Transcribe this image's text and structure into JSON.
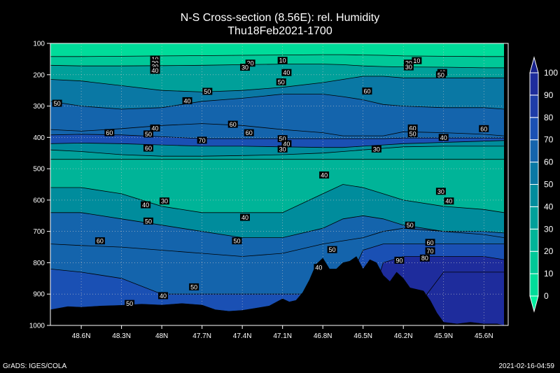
{
  "title_line1": "N-S Cross-section (8.56E): rel. Humidity",
  "title_line2": "Thu18Feb2021-1700",
  "footer_left": "GrADS: IGES/COLA",
  "footer_right": "2021-02-16-04:59",
  "chart_data": {
    "type": "heatmap",
    "title": "N-S Cross-section (8.56E): rel. Humidity",
    "subtitle": "Thu18Feb2021-1700",
    "x_ticks": [
      "48.6N",
      "48.3N",
      "48N",
      "47.7N",
      "47.4N",
      "47.1N",
      "46.8N",
      "46.5N",
      "46.2N",
      "45.9N",
      "45.6N"
    ],
    "x_tick_values": [
      48.6,
      48.3,
      48.0,
      47.7,
      47.4,
      47.1,
      46.8,
      46.5,
      46.2,
      45.9,
      45.6
    ],
    "xlim": [
      48.83,
      45.45
    ],
    "y_ticks": [
      "100",
      "200",
      "300",
      "400",
      "500",
      "600",
      "700",
      "800",
      "900",
      "1000"
    ],
    "ylim": [
      100,
      1000
    ],
    "y_reversed": true,
    "grid": true,
    "colorbar": {
      "levels": [
        0,
        10,
        20,
        30,
        40,
        50,
        60,
        70,
        80,
        90,
        100
      ],
      "colors": [
        "#00f0a0",
        "#00dc9a",
        "#00c898",
        "#00b498",
        "#00a09a",
        "#008c9c",
        "#0a78a4",
        "#1464ac",
        "#1a50b4",
        "#1e3ca8",
        "#1e2c9c",
        "#16208c"
      ]
    },
    "layers": [
      {
        "value": 5,
        "p": [
          100,
          100,
          100,
          100,
          100,
          100,
          100,
          100,
          100,
          100,
          100,
          100,
          100,
          100,
          100
        ]
      },
      {
        "value": 15,
        "p": [
          142,
          142,
          141,
          140,
          139,
          138,
          137,
          136,
          136,
          137,
          138,
          140,
          141,
          142,
          142
        ]
      },
      {
        "value": 35,
        "p": [
          170,
          172,
          172,
          171,
          170,
          168,
          166,
          166,
          168,
          172,
          174,
          175,
          176,
          178,
          178
        ]
      },
      {
        "value": 55,
        "p": [
          215,
          220,
          235,
          250,
          255,
          250,
          240,
          225,
          215,
          205,
          205,
          210,
          210,
          210,
          210
        ]
      },
      {
        "value": 68,
        "p": [
          285,
          300,
          310,
          305,
          285,
          275,
          262,
          262,
          270,
          280,
          295,
          300,
          305,
          305,
          310
        ]
      },
      {
        "value": 60,
        "p": [
          375,
          380,
          372,
          362,
          356,
          362,
          375,
          385,
          395,
          395,
          395,
          382,
          385,
          390,
          395
        ]
      },
      {
        "value": 72,
        "p": [
          392,
          390,
          392,
          398,
          404,
          404,
          404,
          404,
          404,
          404,
          404,
          402,
          402,
          402,
          402
        ]
      },
      {
        "value": 45,
        "p": [
          420,
          418,
          420,
          424,
          428,
          428,
          430,
          432,
          432,
          428,
          424,
          420,
          416,
          412,
          410
        ]
      },
      {
        "value": 32,
        "p": [
          440,
          445,
          455,
          460,
          460,
          458,
          455,
          450,
          445,
          440,
          435,
          430,
          428,
          428,
          428
        ]
      },
      {
        "value": 20,
        "p": [
          470,
          470,
          470,
          470,
          470,
          470,
          470,
          470,
          470,
          470,
          470,
          470,
          470,
          470,
          470
        ]
      },
      {
        "value": 45,
        "p": [
          560,
          560,
          580,
          620,
          640,
          640,
          640,
          580,
          550,
          560,
          580,
          600,
          620,
          630,
          640
        ]
      },
      {
        "value": 62,
        "p": [
          640,
          640,
          660,
          680,
          700,
          720,
          720,
          690,
          660,
          650,
          660,
          680,
          700,
          710,
          720
        ]
      },
      {
        "value": 66,
        "p": [
          740,
          745,
          750,
          760,
          770,
          780,
          770,
          740,
          730,
          720,
          700,
          690,
          700,
          700,
          705
        ]
      },
      {
        "value": 78,
        "p": [
          820,
          830,
          850,
          900,
          900,
          900,
          900,
          900,
          900,
          760,
          740,
          740,
          740,
          740,
          740
        ]
      },
      {
        "value": 90,
        "p": [
          1000,
          1000,
          1000,
          1000,
          1000,
          1000,
          1000,
          1000,
          1000,
          1000,
          800,
          780,
          780,
          780,
          790
        ]
      },
      {
        "value": 96,
        "p": [
          1000,
          1000,
          1000,
          1000,
          1000,
          1000,
          1000,
          1000,
          1000,
          1000,
          1000,
          1000,
          830,
          830,
          830
        ]
      }
    ],
    "layer_x": [
      48.83,
      48.6,
      48.3,
      48.0,
      47.7,
      47.4,
      47.1,
      46.8,
      46.65,
      46.5,
      46.35,
      46.2,
      45.9,
      45.6,
      45.45
    ],
    "terrain": {
      "lat": [
        48.83,
        48.7,
        48.6,
        48.45,
        48.3,
        48.15,
        48.0,
        47.85,
        47.7,
        47.6,
        47.5,
        47.4,
        47.3,
        47.2,
        47.1,
        47.05,
        47.0,
        46.95,
        46.9,
        46.85,
        46.8,
        46.75,
        46.7,
        46.65,
        46.6,
        46.55,
        46.5,
        46.45,
        46.4,
        46.35,
        46.3,
        46.25,
        46.2,
        46.15,
        46.1,
        46.05,
        46.0,
        45.95,
        45.9,
        45.8,
        45.7,
        45.6,
        45.5,
        45.45
      ],
      "p": [
        950,
        940,
        942,
        938,
        936,
        932,
        935,
        930,
        935,
        950,
        955,
        952,
        945,
        938,
        915,
        925,
        920,
        895,
        855,
        805,
        785,
        820,
        820,
        800,
        795,
        780,
        820,
        790,
        800,
        840,
        860,
        830,
        850,
        880,
        885,
        890,
        920,
        960,
        990,
        995,
        990,
        995,
        995,
        1000
      ]
    },
    "contour_labels": [
      {
        "text": "10",
        "lat": 47.1,
        "p": 154
      },
      {
        "text": "10",
        "lat": 46.1,
        "p": 155
      },
      {
        "text": "10",
        "lat": 48.05,
        "p": 150
      },
      {
        "text": "20",
        "lat": 48.05,
        "p": 162
      },
      {
        "text": "30",
        "lat": 48.05,
        "p": 174
      },
      {
        "text": "40",
        "lat": 48.05,
        "p": 186
      },
      {
        "text": "20",
        "lat": 47.34,
        "p": 163
      },
      {
        "text": "30",
        "lat": 47.38,
        "p": 176
      },
      {
        "text": "20",
        "lat": 46.16,
        "p": 163
      },
      {
        "text": "30",
        "lat": 46.16,
        "p": 175
      },
      {
        "text": "40",
        "lat": 45.91,
        "p": 193
      },
      {
        "text": "50",
        "lat": 45.92,
        "p": 200
      },
      {
        "text": "40",
        "lat": 47.07,
        "p": 193
      },
      {
        "text": "50",
        "lat": 47.11,
        "p": 223
      },
      {
        "text": "50",
        "lat": 48.78,
        "p": 291
      },
      {
        "text": "40",
        "lat": 47.81,
        "p": 283
      },
      {
        "text": "50",
        "lat": 47.66,
        "p": 253
      },
      {
        "text": "60",
        "lat": 46.47,
        "p": 252
      },
      {
        "text": "60",
        "lat": 47.47,
        "p": 358
      },
      {
        "text": "60",
        "lat": 48.39,
        "p": 385
      },
      {
        "text": "40",
        "lat": 48.05,
        "p": 370
      },
      {
        "text": "50",
        "lat": 48.1,
        "p": 389
      },
      {
        "text": "60",
        "lat": 47.35,
        "p": 385
      },
      {
        "text": "60",
        "lat": 46.13,
        "p": 370
      },
      {
        "text": "60",
        "lat": 45.6,
        "p": 372
      },
      {
        "text": "50",
        "lat": 46.13,
        "p": 388
      },
      {
        "text": "40",
        "lat": 45.9,
        "p": 400
      },
      {
        "text": "70",
        "lat": 47.7,
        "p": 409
      },
      {
        "text": "50",
        "lat": 47.1,
        "p": 404
      },
      {
        "text": "40",
        "lat": 47.07,
        "p": 420
      },
      {
        "text": "30",
        "lat": 47.1,
        "p": 437
      },
      {
        "text": "60",
        "lat": 48.1,
        "p": 434
      },
      {
        "text": "30",
        "lat": 46.4,
        "p": 437
      },
      {
        "text": "40",
        "lat": 46.79,
        "p": 520
      },
      {
        "text": "30",
        "lat": 45.92,
        "p": 572
      },
      {
        "text": "40",
        "lat": 45.86,
        "p": 603
      },
      {
        "text": "40",
        "lat": 48.12,
        "p": 615
      },
      {
        "text": "30",
        "lat": 47.98,
        "p": 603
      },
      {
        "text": "50",
        "lat": 48.1,
        "p": 667
      },
      {
        "text": "40",
        "lat": 47.38,
        "p": 655
      },
      {
        "text": "50",
        "lat": 46.15,
        "p": 680
      },
      {
        "text": "60",
        "lat": 48.46,
        "p": 730
      },
      {
        "text": "50",
        "lat": 47.44,
        "p": 730
      },
      {
        "text": "60",
        "lat": 46.0,
        "p": 735
      },
      {
        "text": "50",
        "lat": 46.73,
        "p": 758
      },
      {
        "text": "70",
        "lat": 46.0,
        "p": 762
      },
      {
        "text": "90",
        "lat": 46.23,
        "p": 792
      },
      {
        "text": "80",
        "lat": 46.04,
        "p": 785
      },
      {
        "text": "40",
        "lat": 46.83,
        "p": 815
      },
      {
        "text": "50",
        "lat": 47.76,
        "p": 877
      },
      {
        "text": "40",
        "lat": 47.99,
        "p": 905
      },
      {
        "text": "50",
        "lat": 48.24,
        "p": 930
      }
    ]
  }
}
